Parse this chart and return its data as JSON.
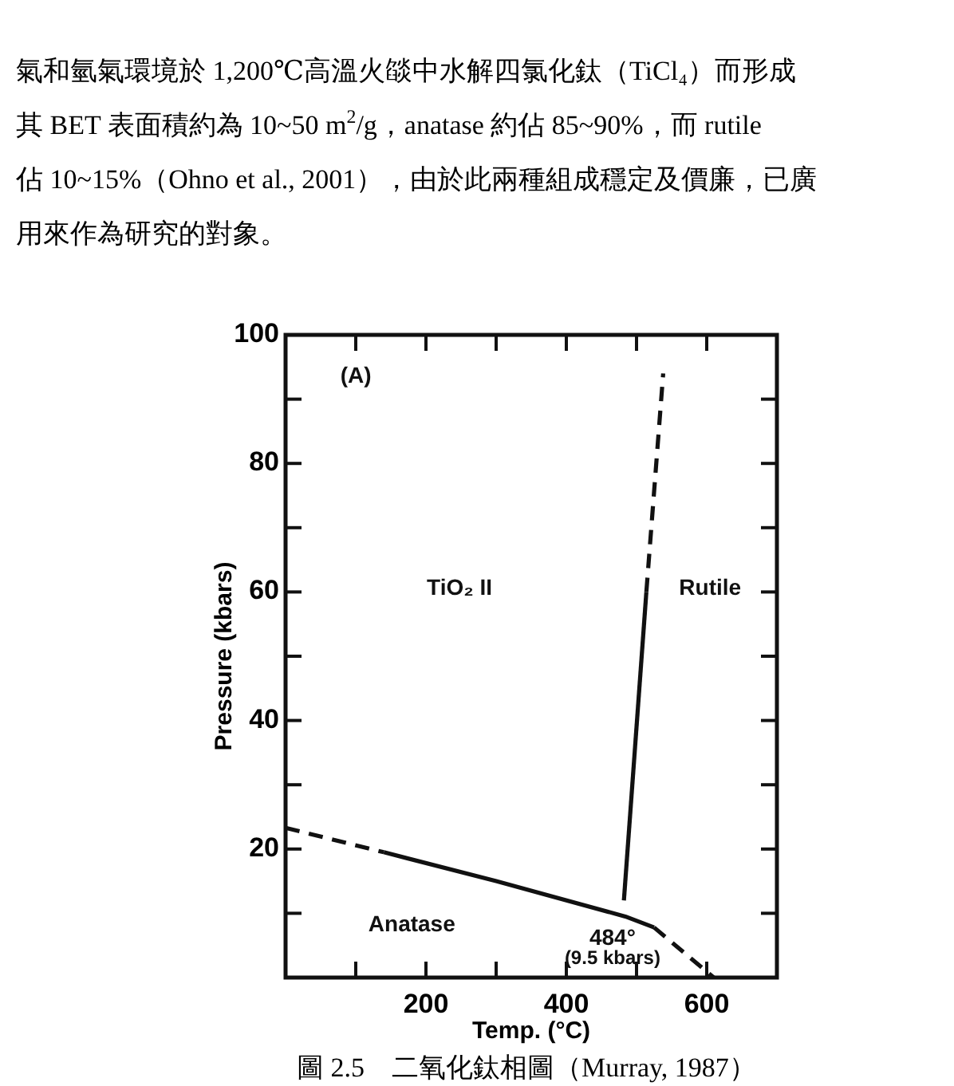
{
  "chart_data": {
    "type": "line",
    "xlabel": "Temp. (°C)",
    "ylabel": "Pressure (kbars)",
    "xlim": [
      0,
      700
    ],
    "ylim": [
      0,
      100
    ],
    "xticks": [
      {
        "value": 100,
        "label": null
      },
      200,
      {
        "value": 300,
        "label": null
      },
      400,
      {
        "value": 500,
        "label": null
      },
      600
    ],
    "yticks": [
      {
        "value": 10,
        "label": null
      },
      20,
      {
        "value": 30,
        "label": null
      },
      40,
      {
        "value": 50,
        "label": null
      },
      60,
      {
        "value": 70,
        "label": null
      },
      80,
      {
        "value": 90,
        "label": null
      },
      100
    ],
    "grid": false,
    "marker": "none",
    "series": [
      {
        "color": "#111111",
        "line_style": "dashed",
        "x": [
          0,
          140
        ],
        "values": [
          23.3,
          19.5
        ]
      },
      {
        "color": "#111111",
        "line_style": "solid",
        "x": [
          140,
          300,
          484,
          525
        ],
        "values": [
          19.5,
          15,
          9.5,
          7.8
        ]
      },
      {
        "color": "#111111",
        "line_style": "dashed",
        "x": [
          525,
          610
        ],
        "values": [
          7.8,
          0
        ]
      },
      {
        "color": "#111111",
        "line_style": "solid",
        "x": [
          482,
          514
        ],
        "values": [
          12,
          60
        ]
      },
      {
        "color": "#111111",
        "line_style": "dashed",
        "x": [
          514,
          538
        ],
        "values": [
          60,
          94
        ]
      }
    ],
    "annotations": [
      "氣和氫氣環境於 1,200℃高溫火燄中水解四氯化鈦（TiCl₄）而形成",
      "其 BET 表面積約為 10~50 m$^{2}$/g，anatase 約佔 85~90%，而 rutile",
      "佔 10~15%（Ohno et al., 2001），由於此兩種組成穩定及價廉，已廣",
      "用來作為研究的對象。",
      "(A)",
      "TiO₂ II",
      "Rutile",
      "Anatase",
      {
        "text": "484°",
        "x": 484,
        "y": 9.5
      },
      {
        "text": "(9.5 kbars)",
        "x": 484,
        "y": 9.5
      },
      "圖 2.5　二氧化鈦相圖（Murray, 1987）"
    ]
  }
}
